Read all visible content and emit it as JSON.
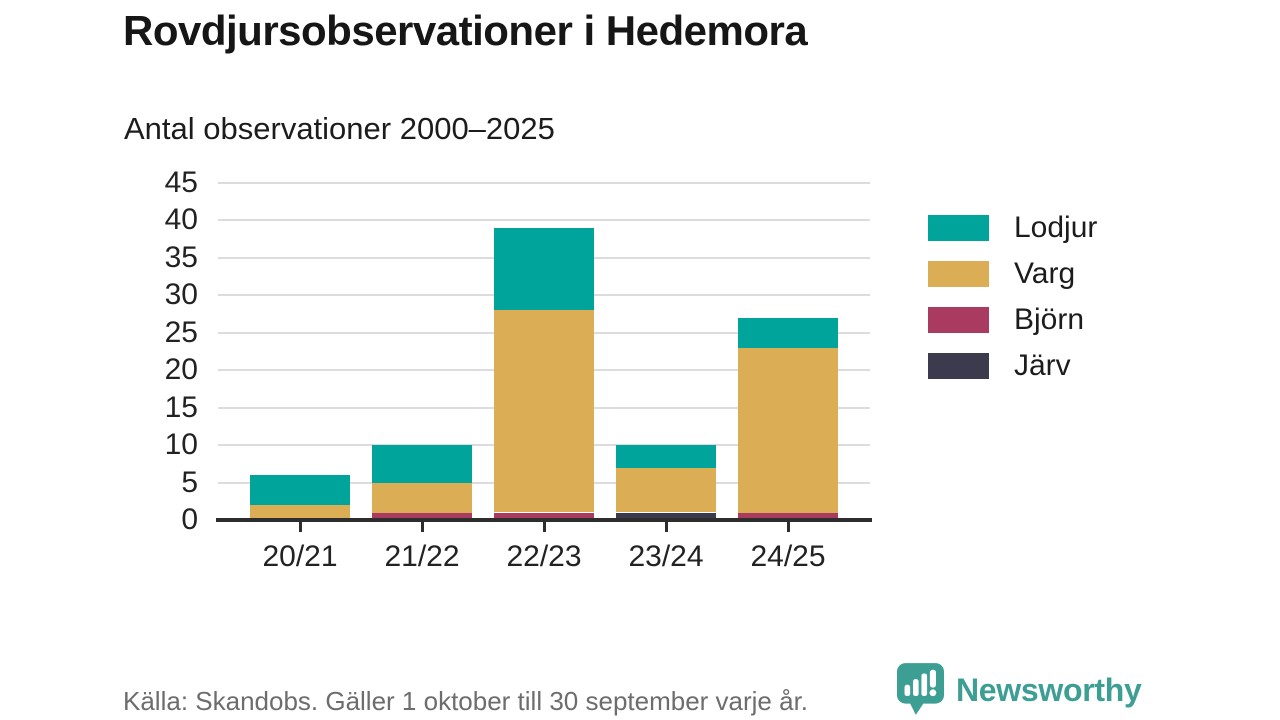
{
  "header": {
    "title": "Rovdjursobservationer i Hedemora",
    "subtitle": "Antal observationer 2000–2025"
  },
  "footer": {
    "source": "Källa: Skandobs. Gäller 1 oktober till 30 september varje år."
  },
  "branding": {
    "name": "Newsworthy",
    "color": "#3d9e93",
    "icon": "newsworthy-speech-bubble-chart-icon"
  },
  "chart_data": {
    "type": "bar",
    "stacked": true,
    "title": "Rovdjursobservationer i Hedemora",
    "subtitle": "Antal observationer 2000–2025",
    "categories": [
      "20/21",
      "21/22",
      "22/23",
      "23/24",
      "24/25"
    ],
    "series": [
      {
        "name": "Lodjur",
        "color": "#00a49a",
        "values": [
          4,
          5,
          11,
          3,
          4
        ]
      },
      {
        "name": "Varg",
        "color": "#dbae55",
        "values": [
          2,
          4,
          27,
          6,
          22
        ]
      },
      {
        "name": "Björn",
        "color": "#a83b5f",
        "values": [
          0,
          1,
          1,
          0,
          1
        ]
      },
      {
        "name": "Järv",
        "color": "#3c3a4d",
        "values": [
          0,
          0,
          0,
          1,
          0
        ]
      }
    ],
    "totals": [
      6,
      10,
      39,
      10,
      27
    ],
    "stack_order_bottom_to_top": [
      "Järv",
      "Björn",
      "Varg",
      "Lodjur"
    ],
    "yticks": [
      0,
      5,
      10,
      15,
      20,
      25,
      30,
      35,
      40,
      45
    ],
    "ylim": [
      0,
      45
    ],
    "xlabel": "",
    "ylabel": "",
    "grid": "horizontal",
    "legend_position": "right",
    "axis_color": "#2d2d2d",
    "gridline_color": "#dcdcdc",
    "text_color": "#222222"
  }
}
